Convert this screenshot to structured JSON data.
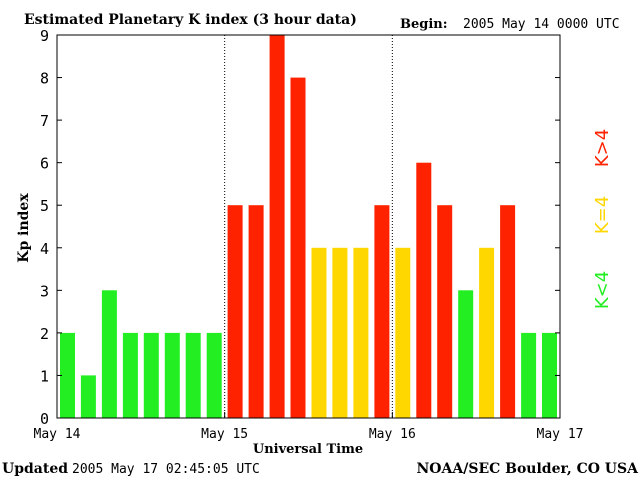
{
  "chart_data": {
    "type": "bar",
    "title": "Estimated Planetary K index (3 hour data)",
    "begin_label": "Begin:",
    "begin_value": "2005 May 14 0000 UTC",
    "ylabel": "Kp index",
    "xlabel": "Universal Time",
    "ylim": [
      0,
      9
    ],
    "yticks": [
      "0",
      "1",
      "2",
      "3",
      "4",
      "5",
      "6",
      "7",
      "8",
      "9"
    ],
    "xtick_labels": [
      "May 14",
      "May 15",
      "May 16",
      "May 17"
    ],
    "values": [
      2,
      1,
      3,
      2,
      2,
      2,
      2,
      2,
      5,
      5,
      9,
      8,
      4,
      4,
      4,
      5,
      4,
      6,
      5,
      3,
      4,
      5,
      2,
      2
    ],
    "legend": [
      {
        "label": "K>4",
        "color": "#ff2200"
      },
      {
        "label": "K=4",
        "color": "#ffd700"
      },
      {
        "label": "K<4",
        "color": "#22ee22"
      }
    ]
  },
  "footer": {
    "updated_label": "Updated",
    "updated_value": "2005 May 17 02:45:05 UTC",
    "credit": "NOAA/SEC Boulder, CO USA"
  },
  "colors": {
    "high": "#ff2200",
    "equal": "#ffd700",
    "low": "#22ee22"
  }
}
